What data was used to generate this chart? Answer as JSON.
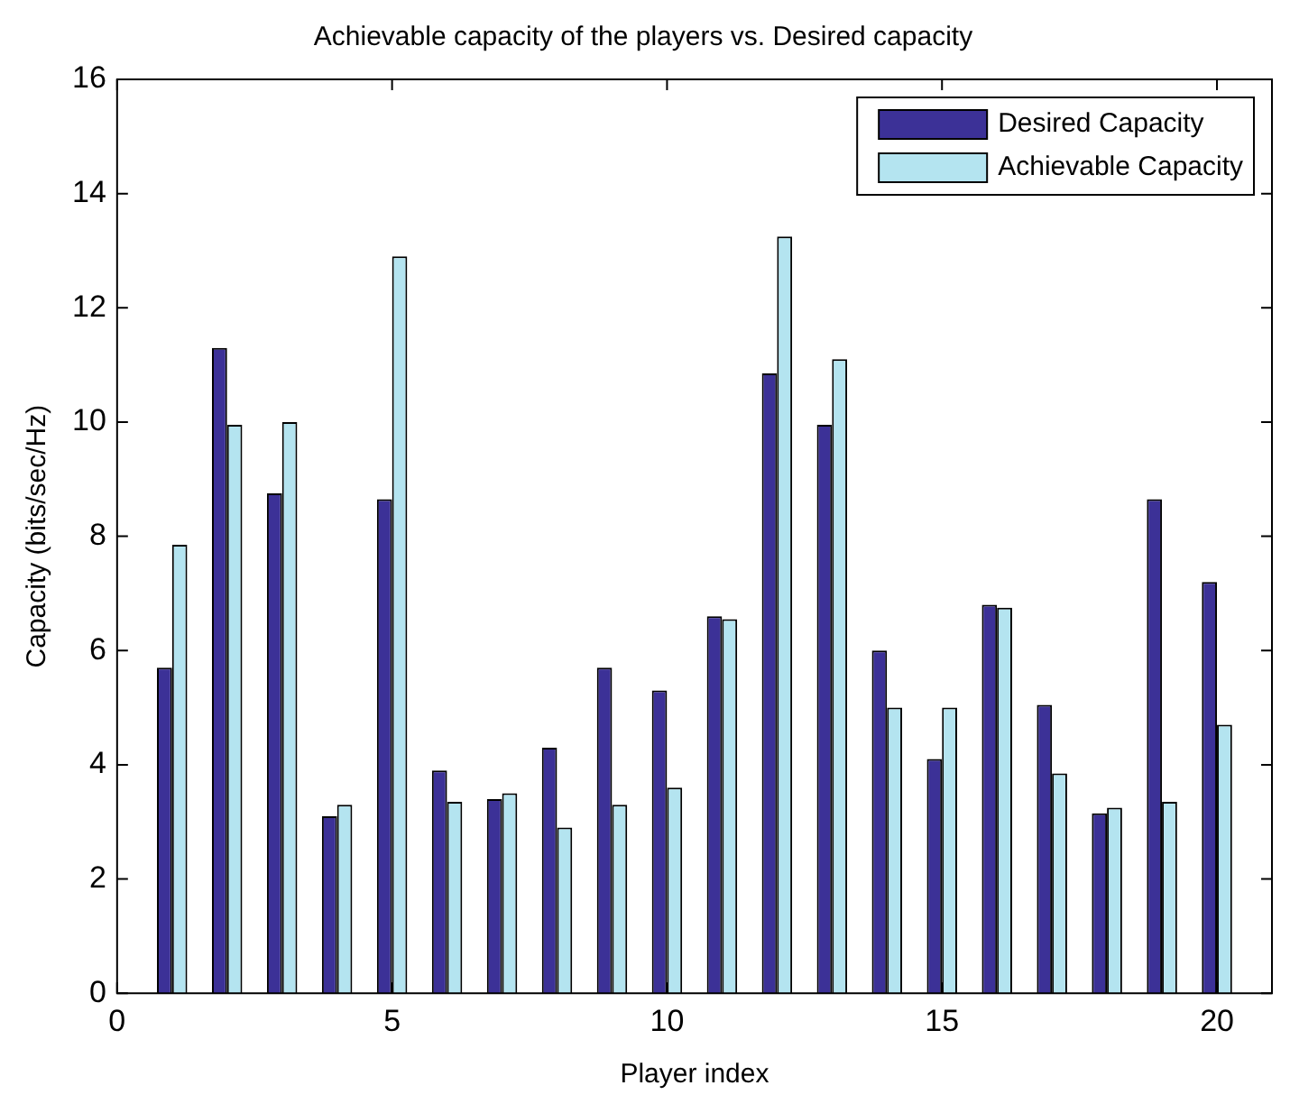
{
  "chart_data": {
    "type": "bar",
    "title": "Achievable capacity of the players vs. Desired capacity",
    "xlabel": "Player index",
    "ylabel": "Capacity (bits/sec/Hz)",
    "x": [
      1,
      2,
      3,
      4,
      5,
      6,
      7,
      8,
      9,
      10,
      11,
      12,
      13,
      14,
      15,
      16,
      17,
      18,
      19,
      20
    ],
    "series": [
      {
        "name": "Desired Capacity",
        "color": "#3c3197",
        "values": [
          5.7,
          11.3,
          8.75,
          3.1,
          8.65,
          3.9,
          3.4,
          4.3,
          5.7,
          5.3,
          6.6,
          10.85,
          9.95,
          6.0,
          4.1,
          6.8,
          5.05,
          3.15,
          8.65,
          7.2
        ]
      },
      {
        "name": "Achievable Capacity",
        "color": "#b4e4f0",
        "values": [
          7.85,
          9.95,
          10.0,
          3.3,
          12.9,
          3.35,
          3.5,
          2.9,
          3.3,
          3.6,
          6.55,
          13.25,
          11.1,
          5.0,
          5.0,
          6.75,
          3.85,
          3.25,
          3.35,
          4.7
        ]
      }
    ],
    "xlim": [
      0,
      21
    ],
    "xticks": [
      0,
      5,
      10,
      15,
      20
    ],
    "ylim": [
      0,
      16
    ],
    "yticks": [
      0,
      2,
      4,
      6,
      8,
      10,
      12,
      14,
      16
    ],
    "grid": false,
    "legend": "top right"
  }
}
